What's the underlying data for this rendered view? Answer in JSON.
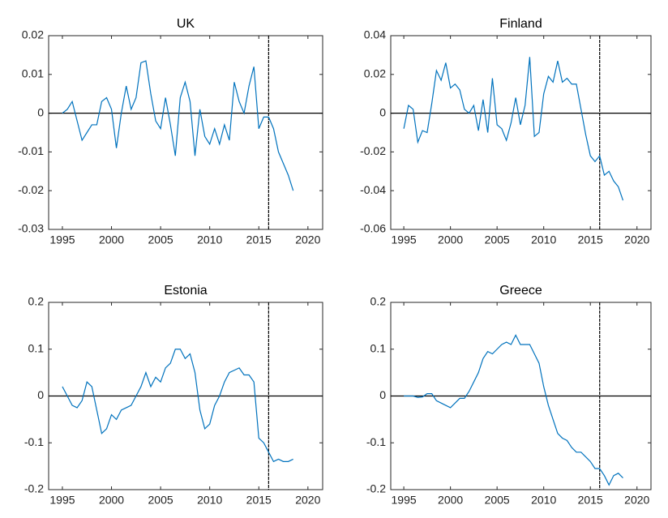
{
  "chart_data": [
    {
      "type": "line",
      "title": "UK",
      "color": "#0072bd",
      "x": [
        1995,
        1995.5,
        1996,
        1996.5,
        1997,
        1997.5,
        1998,
        1998.5,
        1999,
        1999.5,
        2000,
        2000.5,
        2001,
        2001.5,
        2002,
        2002.5,
        2003,
        2003.5,
        2004,
        2004.5,
        2005,
        2005.5,
        2006,
        2006.5,
        2007,
        2007.5,
        2008,
        2008.5,
        2009,
        2009.5,
        2010,
        2010.5,
        2011,
        2011.5,
        2012,
        2012.5,
        2013,
        2013.5,
        2014,
        2014.5,
        2015,
        2015.5,
        2016,
        2016.5,
        2017,
        2017.5,
        2018,
        2018.5
      ],
      "values": [
        0,
        0.001,
        0.003,
        -0.002,
        -0.007,
        -0.005,
        -0.003,
        -0.003,
        0.003,
        0.004,
        0.001,
        -0.009,
        0,
        0.007,
        0.001,
        0.004,
        0.013,
        0.0135,
        0.005,
        -0.002,
        -0.004,
        0.004,
        -0.003,
        -0.011,
        0.004,
        0.008,
        0.003,
        -0.011,
        0.001,
        -0.006,
        -0.008,
        -0.004,
        -0.008,
        -0.003,
        -0.007,
        0.008,
        0.003,
        0,
        0.007,
        0.012,
        -0.004,
        -0.001,
        -0.001,
        -0.004,
        -0.01,
        -0.013,
        -0.016,
        -0.02
      ],
      "xlim": [
        1993.6,
        2021.5
      ],
      "xticks": [
        1995,
        2000,
        2005,
        2010,
        2015,
        2020
      ],
      "ylim": [
        -0.03,
        0.02
      ],
      "yticks": [
        -0.03,
        -0.02,
        -0.01,
        0,
        0.01,
        0.02
      ],
      "vline": 2016,
      "hline": 0
    },
    {
      "type": "line",
      "title": "Finland",
      "color": "#0072bd",
      "x": [
        1995,
        1995.5,
        1996,
        1996.5,
        1997,
        1997.5,
        1998,
        1998.5,
        1999,
        1999.5,
        2000,
        2000.5,
        2001,
        2001.5,
        2002,
        2002.5,
        2003,
        2003.5,
        2004,
        2004.5,
        2005,
        2005.5,
        2006,
        2006.5,
        2007,
        2007.5,
        2008,
        2008.5,
        2009,
        2009.5,
        2010,
        2010.5,
        2011,
        2011.5,
        2012,
        2012.5,
        2013,
        2013.5,
        2014,
        2014.5,
        2015,
        2015.5,
        2016,
        2016.5,
        2017,
        2017.5,
        2018,
        2018.5
      ],
      "values": [
        -0.008,
        0.004,
        0.002,
        -0.015,
        -0.009,
        -0.01,
        0.005,
        0.022,
        0.017,
        0.026,
        0.013,
        0.015,
        0.012,
        0.002,
        0,
        0.004,
        -0.009,
        0.007,
        -0.01,
        0.018,
        -0.006,
        -0.008,
        -0.014,
        -0.005,
        0.008,
        -0.006,
        0.004,
        0.029,
        -0.012,
        -0.01,
        0.01,
        0.019,
        0.016,
        0.027,
        0.016,
        0.018,
        0.015,
        0.015,
        0.002,
        -0.011,
        -0.022,
        -0.025,
        -0.022,
        -0.032,
        -0.03,
        -0.035,
        -0.038,
        -0.045
      ],
      "xlim": [
        1993.6,
        2021.5
      ],
      "xticks": [
        1995,
        2000,
        2005,
        2010,
        2015,
        2020
      ],
      "ylim": [
        -0.06,
        0.04
      ],
      "yticks": [
        -0.06,
        -0.04,
        -0.02,
        0,
        0.02,
        0.04
      ],
      "vline": 2016,
      "hline": 0
    },
    {
      "type": "line",
      "title": "Estonia",
      "color": "#0072bd",
      "x": [
        1995,
        1995.5,
        1996,
        1996.5,
        1997,
        1997.5,
        1998,
        1998.5,
        1999,
        1999.5,
        2000,
        2000.5,
        2001,
        2001.5,
        2002,
        2002.5,
        2003,
        2003.5,
        2004,
        2004.5,
        2005,
        2005.5,
        2006,
        2006.5,
        2007,
        2007.5,
        2008,
        2008.5,
        2009,
        2009.5,
        2010,
        2010.5,
        2011,
        2011.5,
        2012,
        2012.5,
        2013,
        2013.5,
        2014,
        2014.5,
        2015,
        2015.5,
        2016,
        2016.5,
        2017,
        2017.5,
        2018,
        2018.5
      ],
      "values": [
        0.02,
        0,
        -0.02,
        -0.025,
        -0.01,
        0.03,
        0.02,
        -0.03,
        -0.08,
        -0.07,
        -0.04,
        -0.05,
        -0.03,
        -0.025,
        -0.02,
        0,
        0.02,
        0.05,
        0.02,
        0.04,
        0.03,
        0.06,
        0.07,
        0.1,
        0.1,
        0.08,
        0.09,
        0.05,
        -0.03,
        -0.07,
        -0.06,
        -0.02,
        0,
        0.03,
        0.05,
        0.055,
        0.06,
        0.045,
        0.045,
        0.03,
        -0.09,
        -0.1,
        -0.12,
        -0.14,
        -0.135,
        -0.14,
        -0.14,
        -0.135
      ],
      "xlim": [
        1993.6,
        2021.5
      ],
      "xticks": [
        1995,
        2000,
        2005,
        2010,
        2015,
        2020
      ],
      "ylim": [
        -0.2,
        0.2
      ],
      "yticks": [
        -0.2,
        -0.1,
        0,
        0.1,
        0.2
      ],
      "vline": 2016,
      "hline": 0
    },
    {
      "type": "line",
      "title": "Greece",
      "color": "#0072bd",
      "x": [
        1995,
        1995.5,
        1996,
        1996.5,
        1997,
        1997.5,
        1998,
        1998.5,
        1999,
        1999.5,
        2000,
        2000.5,
        2001,
        2001.5,
        2002,
        2002.5,
        2003,
        2003.5,
        2004,
        2004.5,
        2005,
        2005.5,
        2006,
        2006.5,
        2007,
        2007.5,
        2008,
        2008.5,
        2009,
        2009.5,
        2010,
        2010.5,
        2011,
        2011.5,
        2012,
        2012.5,
        2013,
        2013.5,
        2014,
        2014.5,
        2015,
        2015.5,
        2016,
        2016.5,
        2017,
        2017.5,
        2018,
        2018.5
      ],
      "values": [
        0,
        0,
        0,
        -0.003,
        -0.002,
        0.005,
        0.005,
        -0.01,
        -0.015,
        -0.02,
        -0.025,
        -0.015,
        -0.005,
        -0.005,
        0.01,
        0.03,
        0.05,
        0.08,
        0.095,
        0.09,
        0.1,
        0.11,
        0.115,
        0.11,
        0.13,
        0.11,
        0.11,
        0.11,
        0.09,
        0.07,
        0.02,
        -0.02,
        -0.05,
        -0.08,
        -0.09,
        -0.095,
        -0.11,
        -0.12,
        -0.12,
        -0.13,
        -0.14,
        -0.155,
        -0.155,
        -0.17,
        -0.19,
        -0.17,
        -0.165,
        -0.175
      ],
      "xlim": [
        1993.6,
        2021.5
      ],
      "xticks": [
        1995,
        2000,
        2005,
        2010,
        2015,
        2020
      ],
      "ylim": [
        -0.2,
        0.2
      ],
      "yticks": [
        -0.2,
        -0.1,
        0,
        0.1,
        0.2
      ],
      "vline": 2016,
      "hline": 0
    }
  ]
}
